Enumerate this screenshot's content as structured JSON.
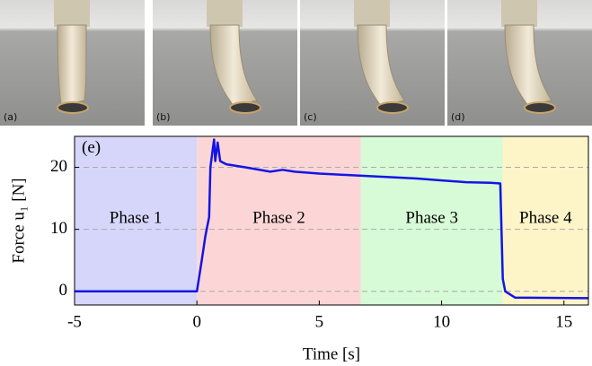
{
  "photos": [
    {
      "label": "(a)"
    },
    {
      "label": "(b)"
    },
    {
      "label": "(c)"
    },
    {
      "label": "(d)"
    }
  ],
  "chart_data": {
    "type": "line",
    "annotation": "(e)",
    "x_label": "Time [s]",
    "y_label": "Force u₁ [N]",
    "color": "#1414e6",
    "x": [
      -5,
      0,
      0.2,
      0.35,
      0.5,
      0.55,
      0.65,
      0.7,
      0.75,
      0.85,
      0.95,
      1.2,
      2,
      3,
      3.5,
      4,
      5,
      6,
      7,
      8,
      9,
      10,
      11,
      12,
      12.4,
      12.5,
      12.6,
      13,
      16
    ],
    "values": [
      0,
      0,
      5,
      9,
      12,
      20,
      23,
      24.5,
      21,
      24,
      21,
      20.5,
      20,
      19.3,
      19.6,
      19.3,
      19,
      18.8,
      18.6,
      18.4,
      18.2,
      17.9,
      17.6,
      17.5,
      17.4,
      2,
      0,
      -1,
      -1.1
    ],
    "phases": [
      {
        "label": "Phase 1",
        "start": -5,
        "end": 0,
        "color": "#d6d6fb"
      },
      {
        "label": "Phase 2",
        "start": 0,
        "end": 6.7,
        "color": "#fcd6d6"
      },
      {
        "label": "Phase 3",
        "start": 6.7,
        "end": 12.5,
        "color": "#d6fbd6"
      },
      {
        "label": "Phase 4",
        "start": 12.5,
        "end": 16,
        "color": "#fdf4c8"
      }
    ],
    "xlim": [
      -5,
      16
    ],
    "ylim": [
      -2.2,
      25
    ],
    "xticks": [
      -5,
      0,
      5,
      10,
      15
    ],
    "yticks": [
      0,
      10,
      20
    ],
    "grid": true
  }
}
